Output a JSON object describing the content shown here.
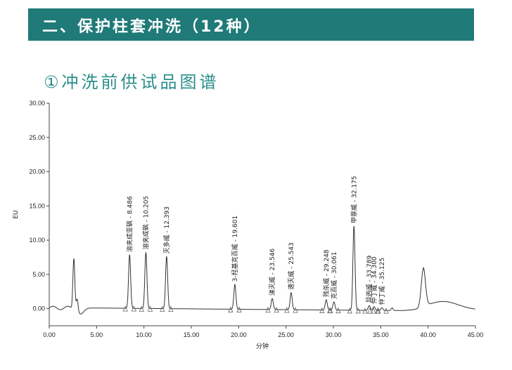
{
  "header": {
    "title": "二、保护柱套冲洗（12种）"
  },
  "section": {
    "subtitle": "①冲洗前供试品图谱"
  },
  "chart_data": {
    "type": "line",
    "ylabel": "EU",
    "xlabel": "分钟",
    "xlim": [
      0,
      45
    ],
    "ylim": [
      -2.5,
      30
    ],
    "x_ticks": [
      "0.00",
      "5.00",
      "10.00",
      "15.00",
      "20.00",
      "25.00",
      "30.00",
      "35.00",
      "40.00",
      "45.00"
    ],
    "y_ticks": [
      "0.00",
      "5.00",
      "10.00",
      "15.00",
      "20.00",
      "25.00",
      "30.00"
    ],
    "peaks": [
      {
        "label": "溶夹成亚砜 - 8.486",
        "rt": 8.486,
        "height": 7.8
      },
      {
        "label": "溶夹成砜 - 10.205",
        "rt": 10.205,
        "height": 8.2
      },
      {
        "label": "灭多威 - 12.393",
        "rt": 12.393,
        "height": 7.6
      },
      {
        "label": "3-羟基克百威 - 19.601",
        "rt": 19.601,
        "height": 3.6
      },
      {
        "label": "涕灭威 - 23.546",
        "rt": 23.546,
        "height": 1.6
      },
      {
        "label": "速灭威 - 25.543",
        "rt": 25.543,
        "height": 2.5
      },
      {
        "label": "残杀威 - 29.248",
        "rt": 29.248,
        "height": 1.5
      },
      {
        "label": "克百威 - 30.061",
        "rt": 30.061,
        "height": 1.2
      },
      {
        "label": "甲萘威 - 32.175",
        "rt": 32.175,
        "height": 12.3
      },
      {
        "label": "异丙威 - 33.789",
        "rt": 33.789,
        "height": 0.7
      },
      {
        "label": "仲丁威 - 34.300",
        "rt": 34.3,
        "height": 0.55
      },
      {
        "label": "仲丁威 - 35.125",
        "rt": 35.125,
        "height": 0.4
      }
    ],
    "other_peaks": [
      {
        "rt": 2.6,
        "height": 7.3
      },
      {
        "rt": 2.95,
        "height": 1.8
      },
      {
        "rt": 36.2,
        "height": 0.4
      }
    ]
  }
}
